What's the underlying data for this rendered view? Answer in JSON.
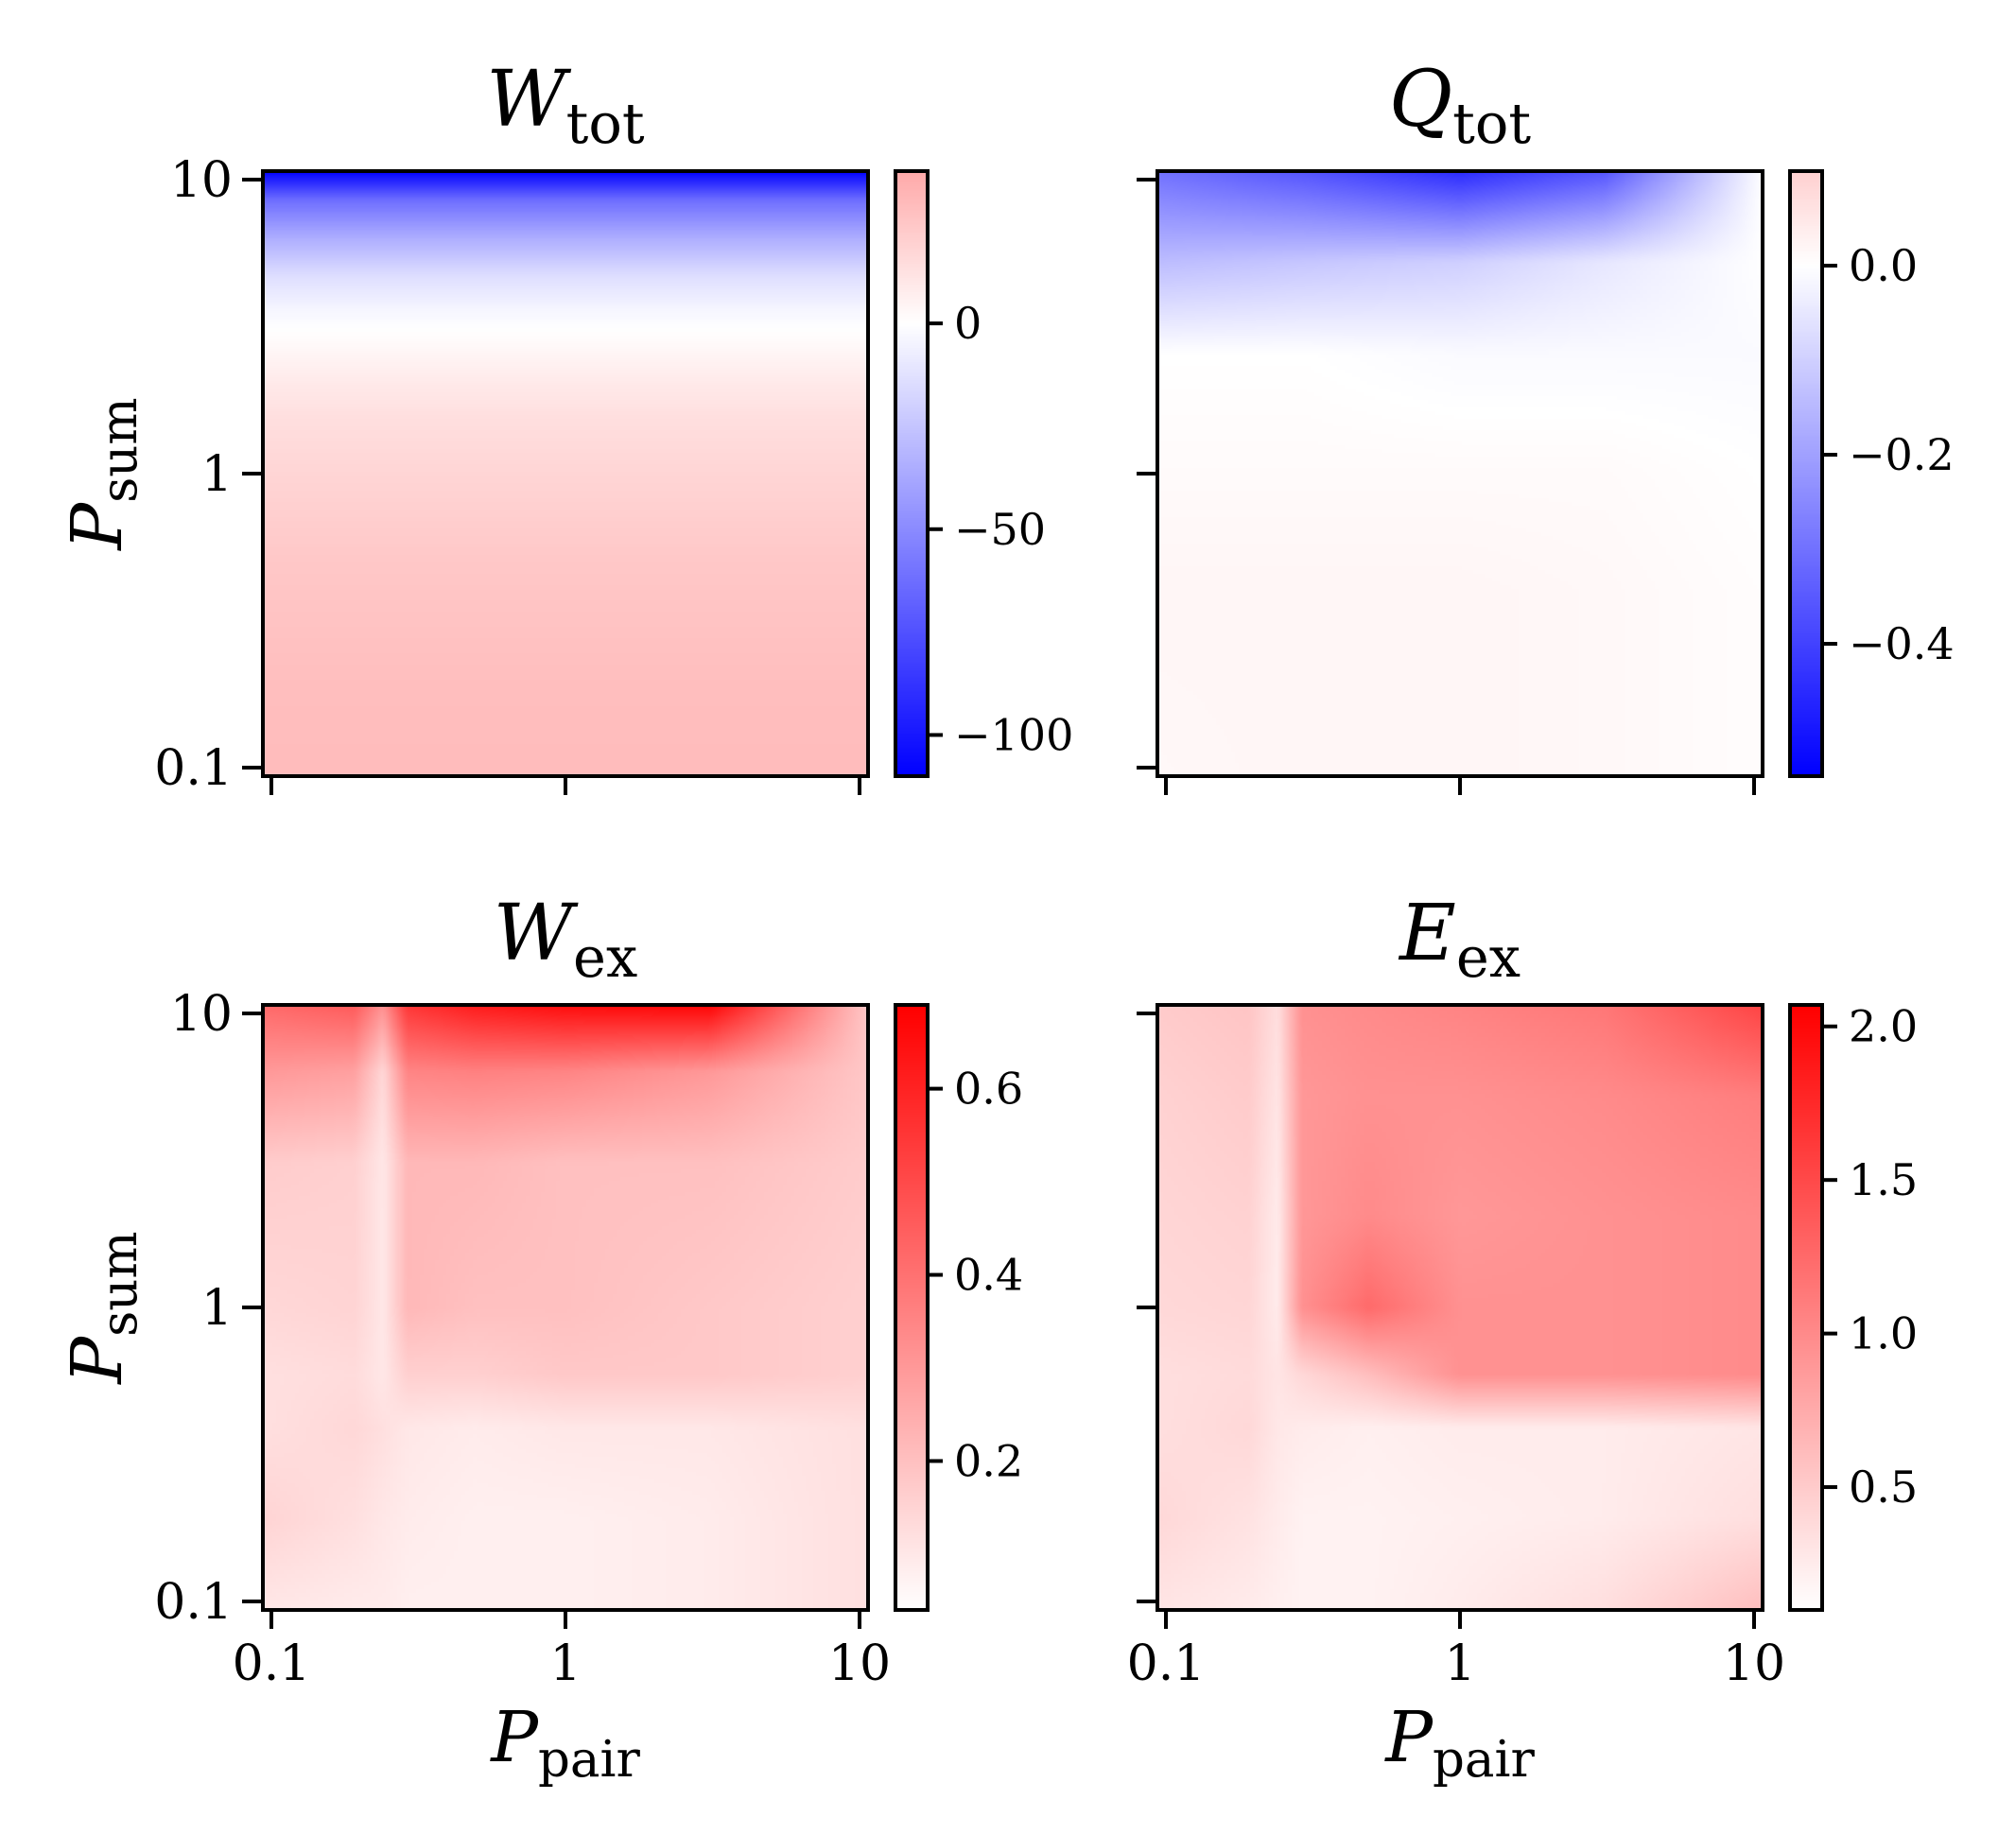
{
  "chart_data": [
    {
      "type": "heatmap",
      "title": "W",
      "title_sub": "tot",
      "xlabel": "",
      "xlabel_sub": "",
      "ylabel": "P",
      "ylabel_sub": "sum",
      "x_scale": "log",
      "y_scale": "log",
      "xlim": [
        0.1,
        10
      ],
      "ylim": [
        0.1,
        10
      ],
      "x_ticks": [
        0.1,
        1,
        10
      ],
      "x_tick_labels": [
        "",
        "",
        ""
      ],
      "y_ticks": [
        0.1,
        1,
        10
      ],
      "y_tick_labels": [
        "0.1",
        "1",
        "10"
      ],
      "colormap": [
        "#0000ff",
        "#ffffff",
        "#ff0000"
      ],
      "vmin": -110,
      "vmax": 37,
      "colorbar_ticks": [
        0,
        -50,
        -100
      ],
      "colorbar_tick_labels": [
        "0",
        "−50",
        "−100"
      ],
      "grid_y": [
        10,
        8,
        6,
        4.5,
        3.5,
        3,
        2.7,
        2.4,
        2,
        1.5,
        1,
        0.5,
        0.2,
        0.1
      ],
      "grid_x": [
        0.1,
        1,
        10
      ],
      "values": [
        [
          -110,
          -110,
          -110
        ],
        [
          -62,
          -62,
          -62
        ],
        [
          -35,
          -35,
          -35
        ],
        [
          -14,
          -14,
          -14
        ],
        [
          -4,
          -4,
          -4
        ],
        [
          0,
          0,
          0
        ],
        [
          2,
          2,
          2
        ],
        [
          5,
          5,
          5
        ],
        [
          9,
          9,
          9
        ],
        [
          14,
          14,
          14
        ],
        [
          18,
          18,
          18
        ],
        [
          24,
          24,
          24
        ],
        [
          28,
          28,
          28
        ],
        [
          29,
          29,
          29
        ]
      ]
    },
    {
      "type": "heatmap",
      "title": "Q",
      "title_sub": "tot",
      "xlabel": "",
      "xlabel_sub": "",
      "ylabel": "",
      "ylabel_sub": "",
      "x_scale": "log",
      "y_scale": "log",
      "xlim": [
        0.1,
        10
      ],
      "ylim": [
        0.1,
        10
      ],
      "x_ticks": [
        0.1,
        1,
        10
      ],
      "x_tick_labels": [
        "",
        "",
        ""
      ],
      "y_ticks": [
        0.1,
        1,
        10
      ],
      "y_tick_labels": [
        "",
        "",
        ""
      ],
      "colormap": [
        "#0000ff",
        "#ffffff",
        "#ff0000"
      ],
      "vmin": -0.54,
      "vmax": 0.1,
      "colorbar_ticks": [
        0.0,
        -0.2,
        -0.4
      ],
      "colorbar_tick_labels": [
        "0.0",
        "−0.2",
        "−0.4"
      ],
      "grid_y": [
        10,
        5,
        2.5,
        1,
        0.4,
        0.1
      ],
      "grid_x": [
        0.1,
        0.3,
        1,
        3,
        10
      ],
      "values": [
        [
          -0.3,
          -0.36,
          -0.45,
          -0.36,
          0.0
        ],
        [
          -0.14,
          -0.12,
          -0.1,
          -0.05,
          0.0
        ],
        [
          0.0,
          0.0,
          -0.01,
          -0.01,
          -0.01
        ],
        [
          0.01,
          0.01,
          0.01,
          0.01,
          0.0
        ],
        [
          0.02,
          0.02,
          0.02,
          0.015,
          0.005
        ],
        [
          0.015,
          0.02,
          0.02,
          0.015,
          0.005
        ]
      ]
    },
    {
      "type": "heatmap",
      "title": "W",
      "title_sub": "ex",
      "xlabel": "P",
      "xlabel_sub": "pair",
      "ylabel": "P",
      "ylabel_sub": "sum",
      "x_scale": "log",
      "y_scale": "log",
      "xlim": [
        0.1,
        10
      ],
      "ylim": [
        0.1,
        10
      ],
      "x_ticks": [
        0.1,
        1,
        10
      ],
      "x_tick_labels": [
        "0.1",
        "1",
        "10"
      ],
      "y_ticks": [
        0.1,
        1,
        10
      ],
      "y_tick_labels": [
        "0.1",
        "1",
        "10"
      ],
      "colormap": [
        "#ffffff",
        "#ff0000"
      ],
      "vmin": 0.04,
      "vmax": 0.69,
      "colorbar_ticks": [
        0.6,
        0.4,
        0.2
      ],
      "colorbar_tick_labels": [
        "0.6",
        "0.4",
        "0.2"
      ],
      "grid_y": [
        10,
        6,
        3,
        1,
        0.6,
        0.4,
        0.2,
        0.1
      ],
      "grid_x": [
        0.1,
        0.2,
        0.25,
        0.3,
        0.5,
        1,
        3,
        10
      ],
      "values": [
        [
          0.42,
          0.46,
          0.32,
          0.55,
          0.62,
          0.66,
          0.68,
          0.18
        ],
        [
          0.3,
          0.28,
          0.14,
          0.35,
          0.36,
          0.35,
          0.3,
          0.18
        ],
        [
          0.17,
          0.16,
          0.1,
          0.22,
          0.22,
          0.2,
          0.2,
          0.17
        ],
        [
          0.14,
          0.15,
          0.1,
          0.22,
          0.2,
          0.2,
          0.18,
          0.16
        ],
        [
          0.12,
          0.13,
          0.1,
          0.16,
          0.16,
          0.18,
          0.18,
          0.16
        ],
        [
          0.12,
          0.14,
          0.12,
          0.1,
          0.09,
          0.1,
          0.1,
          0.12
        ],
        [
          0.15,
          0.12,
          0.1,
          0.09,
          0.08,
          0.08,
          0.09,
          0.12
        ],
        [
          0.1,
          0.09,
          0.09,
          0.08,
          0.08,
          0.08,
          0.09,
          0.12
        ]
      ]
    },
    {
      "type": "heatmap",
      "title": "E",
      "title_sub": "ex",
      "xlabel": "P",
      "xlabel_sub": "pair",
      "ylabel": "",
      "ylabel_sub": "",
      "x_scale": "log",
      "y_scale": "log",
      "xlim": [
        0.1,
        10
      ],
      "ylim": [
        0.1,
        10
      ],
      "x_ticks": [
        0.1,
        1,
        10
      ],
      "x_tick_labels": [
        "0.1",
        "1",
        "10"
      ],
      "y_ticks": [
        0.1,
        1,
        10
      ],
      "y_tick_labels": [
        "",
        "",
        ""
      ],
      "colormap": [
        "#ffffff",
        "#ff0000"
      ],
      "vmin": 0.1,
      "vmax": 2.07,
      "colorbar_ticks": [
        2.0,
        1.5,
        1.0,
        0.5
      ],
      "colorbar_tick_labels": [
        "2.0",
        "1.5",
        "1.0",
        "0.5"
      ],
      "grid_y": [
        10,
        5,
        2,
        1,
        0.6,
        0.4,
        0.2,
        0.1
      ],
      "grid_x": [
        0.1,
        0.2,
        0.25,
        0.3,
        0.5,
        1,
        3,
        10
      ],
      "values": [
        [
          0.5,
          0.55,
          0.35,
          0.95,
          1.0,
          1.05,
          1.15,
          1.55
        ],
        [
          0.45,
          0.5,
          0.3,
          0.9,
          0.95,
          0.95,
          1.0,
          1.1
        ],
        [
          0.42,
          0.45,
          0.25,
          0.9,
          1.0,
          0.9,
          0.95,
          1.0
        ],
        [
          0.4,
          0.42,
          0.25,
          0.95,
          1.25,
          0.95,
          0.95,
          1.0
        ],
        [
          0.35,
          0.38,
          0.3,
          0.4,
          0.6,
          0.95,
          0.95,
          1.0
        ],
        [
          0.35,
          0.4,
          0.28,
          0.25,
          0.22,
          0.25,
          0.25,
          0.3
        ],
        [
          0.4,
          0.32,
          0.25,
          0.2,
          0.2,
          0.22,
          0.25,
          0.35
        ],
        [
          0.3,
          0.25,
          0.22,
          0.2,
          0.2,
          0.25,
          0.35,
          0.6
        ]
      ]
    }
  ]
}
